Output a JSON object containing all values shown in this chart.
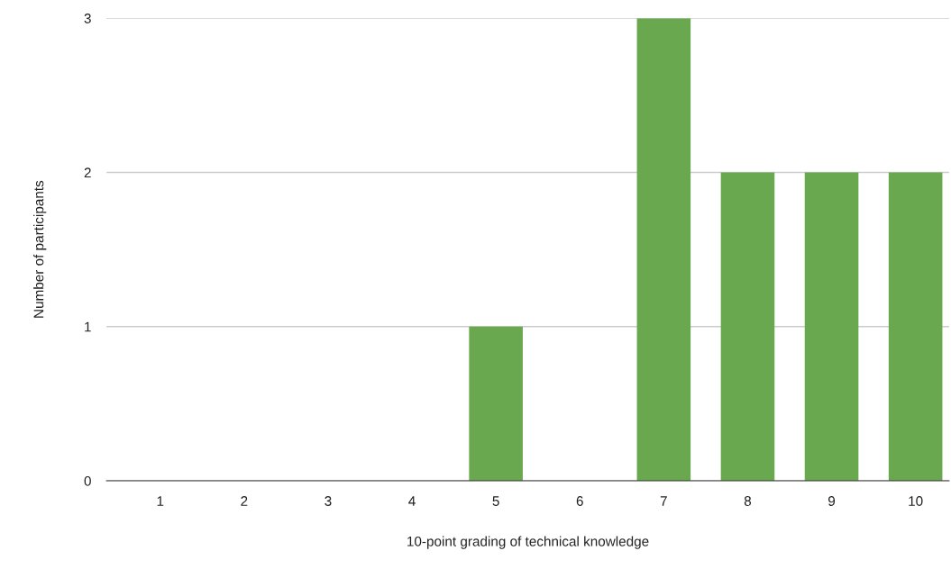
{
  "chart_data": {
    "type": "bar",
    "xlabel": "10-point grading of technical knowledge",
    "ylabel": "Number of participants",
    "categories": [
      "1",
      "2",
      "3",
      "4",
      "5",
      "6",
      "7",
      "8",
      "9",
      "10"
    ],
    "values": [
      0,
      0,
      0,
      0,
      1,
      0,
      3,
      2,
      2,
      2
    ],
    "color": "#6aa84f",
    "ylim": [
      0,
      3
    ],
    "yticks": [
      0,
      1,
      2,
      3
    ],
    "grid": "y",
    "legend": false
  }
}
